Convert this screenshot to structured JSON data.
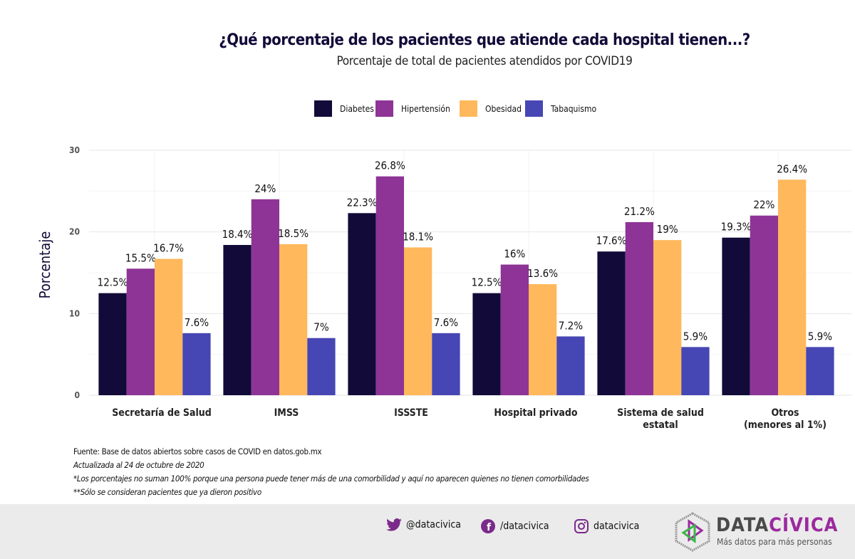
{
  "header": {
    "title": "¿Qué porcentaje de los pacientes que atiende cada hospital tienen...?",
    "subtitle": "Porcentaje de total de pacientes atendidos por COVID19"
  },
  "chart_data": {
    "type": "bar",
    "ylabel": "Porcentaje",
    "xlabel": "",
    "ylim": [
      0,
      30
    ],
    "yticks": [
      0,
      10,
      20,
      30
    ],
    "grid": true,
    "legend_position": "top",
    "categories": [
      "Secretaría de Salud",
      "IMSS",
      "ISSSTE",
      "Hospital privado",
      "Sistema de salud estatal",
      "Otros (menores al 1%)"
    ],
    "category_lines": [
      [
        "Secretaría de Salud"
      ],
      [
        "IMSS"
      ],
      [
        "ISSSTE"
      ],
      [
        "Hospital privado"
      ],
      [
        "Sistema de salud",
        "estatal"
      ],
      [
        "Otros",
        "(menores al 1%)"
      ]
    ],
    "series": [
      {
        "name": "Diabetes",
        "color": "#120a38",
        "values": [
          12.5,
          18.4,
          22.3,
          12.5,
          17.6,
          19.3
        ],
        "labels": [
          "12.5%",
          "18.4%",
          "22.3%",
          "12.5%",
          "17.6%",
          "19.3%"
        ]
      },
      {
        "name": "Hipertensión",
        "color": "#8e3496",
        "values": [
          15.5,
          24,
          26.8,
          16,
          21.2,
          22
        ],
        "labels": [
          "15.5%",
          "24%",
          "26.8%",
          "16%",
          "21.2%",
          "22%"
        ]
      },
      {
        "name": "Obesidad",
        "color": "#ffb85c",
        "values": [
          16.7,
          18.5,
          18.1,
          13.6,
          19,
          26.4
        ],
        "labels": [
          "16.7%",
          "18.5%",
          "18.1%",
          "13.6%",
          "19%",
          "26.4%"
        ]
      },
      {
        "name": "Tabaquismo",
        "color": "#4646b4",
        "values": [
          7.6,
          7,
          7.6,
          7.2,
          5.9,
          5.9
        ],
        "labels": [
          "7.6%",
          "7%",
          "7.6%",
          "7.2%",
          "5.9%",
          "5.9%"
        ]
      }
    ]
  },
  "notes": {
    "source": "Fuente: Base de datos abiertos sobre casos de COVID en datos.gob.mx",
    "updated": "Actualizada al 24 de octubre de 2020",
    "note1": "*Los porcentajes no suman 100% porque una persona puede tener más de una comorbilidad y aquí no aparecen quienes no tienen comorbilidades",
    "note2": "**Sólo se consideran pacientes que ya dieron positivo"
  },
  "footer": {
    "twitter": "@datacivica",
    "facebook": "/datacivica",
    "instagram": "datacivica",
    "brand_a": "DATA",
    "brand_b": "CÍVICA",
    "tagline": "Más datos para más personas"
  }
}
